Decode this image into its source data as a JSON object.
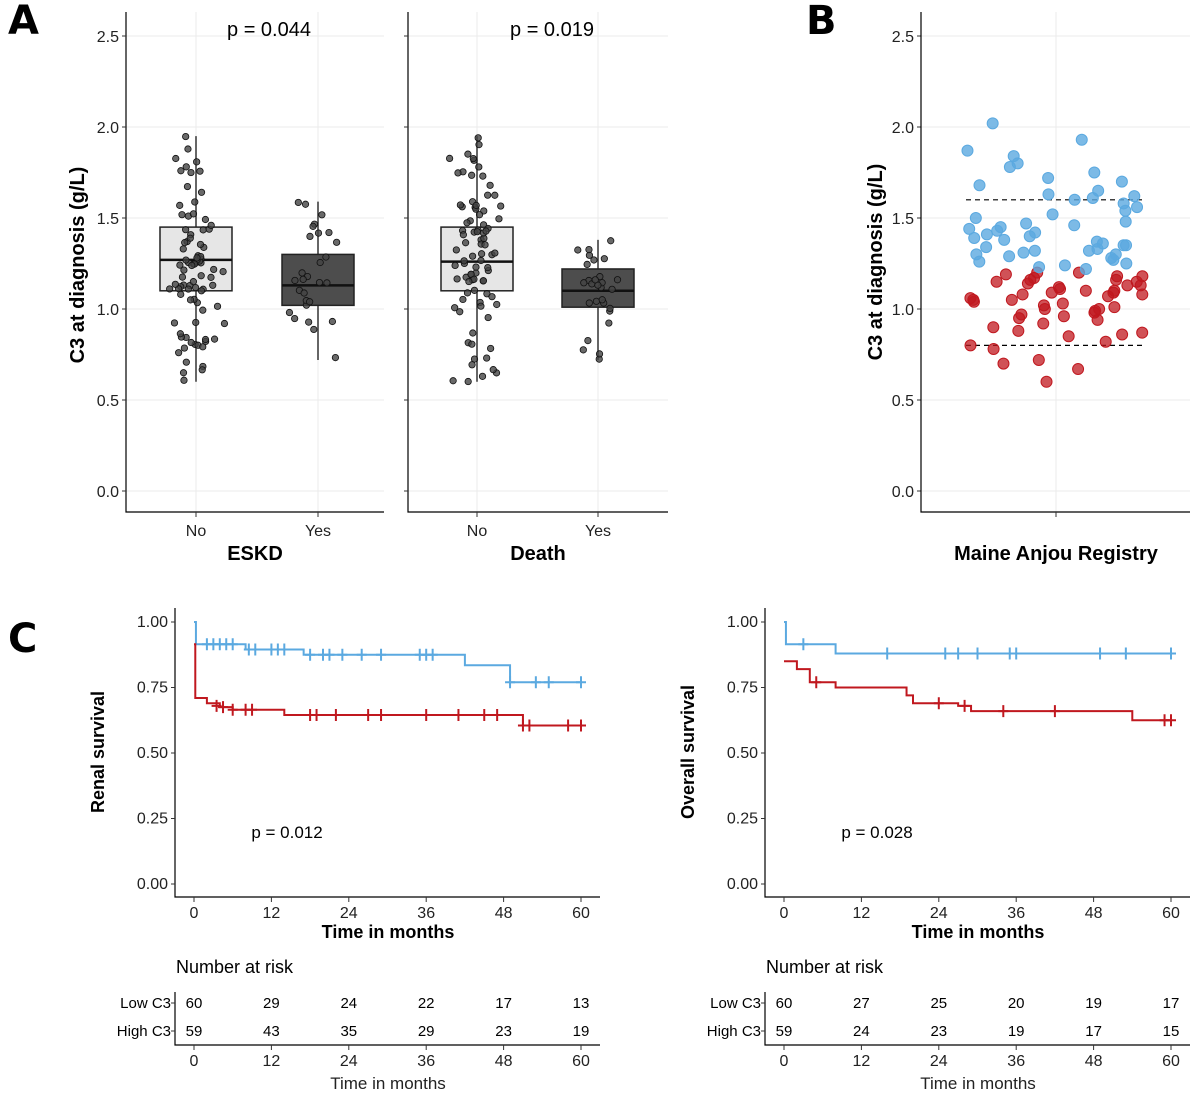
{
  "panel_labels": [
    "A",
    "B",
    "C"
  ],
  "colors": {
    "low": "#c0181f",
    "high": "#5ba9e0",
    "box_light": "#e6e6e6",
    "box_dark": "#4d4d4d"
  },
  "chart_data": [
    {
      "id": "A",
      "type": "boxplot",
      "ylabel": "C3 at diagnosis (g/L)",
      "ylim": [
        0,
        2.6
      ],
      "yticks": [
        "0.0",
        "0.5",
        "1.0",
        "1.5",
        "2.0",
        "2.5"
      ],
      "facets": [
        {
          "xlabel": "ESKD",
          "pvalue": "p = 0.044",
          "groups": [
            {
              "label": "No",
              "q1": 1.1,
              "median": 1.27,
              "q3": 1.45,
              "whisker_low": 0.6,
              "whisker_high": 1.95,
              "fill": "light"
            },
            {
              "label": "Yes",
              "q1": 1.02,
              "median": 1.13,
              "q3": 1.3,
              "whisker_low": 0.72,
              "whisker_high": 1.59,
              "fill": "dark"
            }
          ]
        },
        {
          "xlabel": "Death",
          "pvalue": "p = 0.019",
          "groups": [
            {
              "label": "No",
              "q1": 1.1,
              "median": 1.26,
              "q3": 1.45,
              "whisker_low": 0.6,
              "whisker_high": 1.95,
              "fill": "light"
            },
            {
              "label": "Yes",
              "q1": 1.01,
              "median": 1.1,
              "q3": 1.22,
              "whisker_low": 0.72,
              "whisker_high": 1.38,
              "fill": "dark"
            }
          ]
        }
      ]
    },
    {
      "id": "B",
      "type": "scatter",
      "ylabel": "C3 at diagnosis (g/L)",
      "xlabel": "Maine Anjou Registry",
      "ylim": [
        0,
        2.6
      ],
      "yticks": [
        "0.0",
        "0.5",
        "1.0",
        "1.5",
        "2.0",
        "2.5"
      ],
      "reference_lines": [
        0.8,
        1.6
      ],
      "low_c3": [
        0.6,
        0.67,
        0.7,
        0.72,
        0.78,
        0.8,
        0.82,
        0.85,
        0.86,
        0.87,
        0.88,
        0.9,
        0.92,
        0.94,
        0.95,
        0.96,
        0.97,
        0.98,
        1.0,
        1.0,
        1.01,
        1.02,
        1.03,
        1.04,
        1.05,
        1.06,
        1.07,
        1.08,
        1.08,
        1.09,
        1.1,
        1.1,
        1.11,
        1.12,
        1.13,
        1.14,
        1.15,
        1.15,
        1.16,
        1.17,
        1.18,
        1.18,
        1.19,
        1.2,
        1.2,
        1.13,
        1.05,
        0.99,
        1.09,
        1.16
      ],
      "high_c3": [
        1.22,
        1.23,
        1.24,
        1.25,
        1.26,
        1.27,
        1.28,
        1.29,
        1.3,
        1.3,
        1.31,
        1.32,
        1.32,
        1.33,
        1.34,
        1.35,
        1.35,
        1.36,
        1.37,
        1.38,
        1.39,
        1.4,
        1.41,
        1.42,
        1.43,
        1.44,
        1.45,
        1.46,
        1.47,
        1.48,
        1.5,
        1.52,
        1.54,
        1.56,
        1.58,
        1.6,
        1.61,
        1.62,
        1.63,
        1.65,
        1.68,
        1.7,
        1.72,
        1.75,
        1.78,
        1.8,
        1.84,
        1.87,
        1.93,
        2.02
      ]
    },
    {
      "id": "C-renal",
      "type": "kaplan-meier",
      "ylabel": "Renal survival",
      "xlabel": "Time in months",
      "pvalue": "p = 0.012",
      "xlim": [
        0,
        60
      ],
      "ylim": [
        0,
        1
      ],
      "xticks": [
        "0",
        "12",
        "24",
        "36",
        "48",
        "60"
      ],
      "yticks": [
        "0.00",
        "0.25",
        "0.50",
        "0.75",
        "1.00"
      ],
      "series": [
        {
          "name": "High C3",
          "color_key": "high",
          "steps": [
            [
              0,
              1.0
            ],
            [
              0.3,
              0.915
            ],
            [
              8,
              0.895
            ],
            [
              17,
              0.875
            ],
            [
              42,
              0.835
            ],
            [
              49,
              0.77
            ],
            [
              60,
              0.77
            ]
          ],
          "censors": [
            [
              2,
              0.915
            ],
            [
              3,
              0.915
            ],
            [
              4,
              0.915
            ],
            [
              5,
              0.915
            ],
            [
              6,
              0.915
            ],
            [
              8.5,
              0.895
            ],
            [
              9.5,
              0.895
            ],
            [
              12,
              0.895
            ],
            [
              13,
              0.895
            ],
            [
              14,
              0.895
            ],
            [
              18,
              0.875
            ],
            [
              20,
              0.875
            ],
            [
              21,
              0.875
            ],
            [
              23,
              0.875
            ],
            [
              26,
              0.875
            ],
            [
              29,
              0.875
            ],
            [
              35,
              0.875
            ],
            [
              36,
              0.875
            ],
            [
              37,
              0.875
            ],
            [
              49,
              0.77
            ],
            [
              53,
              0.77
            ],
            [
              55,
              0.77
            ],
            [
              60,
              0.77
            ]
          ]
        },
        {
          "name": "Low C3",
          "color_key": "low",
          "steps": [
            [
              0,
              0.915
            ],
            [
              0.2,
              0.71
            ],
            [
              2,
              0.69
            ],
            [
              4,
              0.675
            ],
            [
              6,
              0.665
            ],
            [
              14,
              0.645
            ],
            [
              51,
              0.605
            ],
            [
              60,
              0.605
            ]
          ],
          "censors": [
            [
              3.5,
              0.68
            ],
            [
              4.5,
              0.675
            ],
            [
              6,
              0.665
            ],
            [
              8,
              0.665
            ],
            [
              9,
              0.665
            ],
            [
              18,
              0.645
            ],
            [
              19,
              0.645
            ],
            [
              22,
              0.645
            ],
            [
              27,
              0.645
            ],
            [
              29,
              0.645
            ],
            [
              36,
              0.645
            ],
            [
              41,
              0.645
            ],
            [
              45,
              0.645
            ],
            [
              47,
              0.645
            ],
            [
              51,
              0.605
            ],
            [
              52,
              0.605
            ],
            [
              58,
              0.605
            ],
            [
              60,
              0.605
            ]
          ]
        }
      ],
      "risk_table": {
        "title": "Number at risk",
        "times": [
          0,
          12,
          24,
          36,
          48,
          60
        ],
        "rows": [
          {
            "label": "Low C3",
            "color_key": "low",
            "values": [
              "60",
              "29",
              "24",
              "22",
              "17",
              "13"
            ]
          },
          {
            "label": "High C3",
            "color_key": "high",
            "values": [
              "59",
              "43",
              "35",
              "29",
              "23",
              "19"
            ]
          }
        ]
      }
    },
    {
      "id": "C-overall",
      "type": "kaplan-meier",
      "ylabel": "Overall survival",
      "xlabel": "Time in months",
      "pvalue": "p = 0.028",
      "xlim": [
        0,
        60
      ],
      "ylim": [
        0,
        1
      ],
      "xticks": [
        "0",
        "12",
        "24",
        "36",
        "48",
        "60"
      ],
      "yticks": [
        "0.00",
        "0.25",
        "0.50",
        "0.75",
        "1.00"
      ],
      "series": [
        {
          "name": "High C3",
          "color_key": "high",
          "steps": [
            [
              0,
              1.0
            ],
            [
              0.3,
              0.915
            ],
            [
              8,
              0.88
            ],
            [
              60,
              0.88
            ]
          ],
          "censors": [
            [
              3,
              0.915
            ],
            [
              16,
              0.88
            ],
            [
              25,
              0.88
            ],
            [
              27,
              0.88
            ],
            [
              30,
              0.88
            ],
            [
              35,
              0.88
            ],
            [
              36,
              0.88
            ],
            [
              49,
              0.88
            ],
            [
              53,
              0.88
            ],
            [
              60,
              0.88
            ]
          ]
        },
        {
          "name": "Low C3",
          "color_key": "low",
          "steps": [
            [
              0,
              0.85
            ],
            [
              2,
              0.82
            ],
            [
              4,
              0.77
            ],
            [
              8,
              0.75
            ],
            [
              19,
              0.72
            ],
            [
              20,
              0.69
            ],
            [
              27,
              0.68
            ],
            [
              29,
              0.66
            ],
            [
              54,
              0.625
            ],
            [
              60,
              0.625
            ]
          ],
          "censors": [
            [
              5,
              0.77
            ],
            [
              24,
              0.69
            ],
            [
              28,
              0.68
            ],
            [
              34,
              0.66
            ],
            [
              42,
              0.66
            ],
            [
              59,
              0.625
            ],
            [
              60,
              0.625
            ]
          ]
        }
      ],
      "risk_table": {
        "title": "Number at risk",
        "times": [
          0,
          12,
          24,
          36,
          48,
          60
        ],
        "rows": [
          {
            "label": "Low C3",
            "color_key": "low",
            "values": [
              "60",
              "27",
              "25",
              "20",
              "19",
              "17"
            ]
          },
          {
            "label": "High C3",
            "color_key": "high",
            "values": [
              "59",
              "24",
              "23",
              "19",
              "17",
              "15"
            ]
          }
        ]
      }
    }
  ]
}
